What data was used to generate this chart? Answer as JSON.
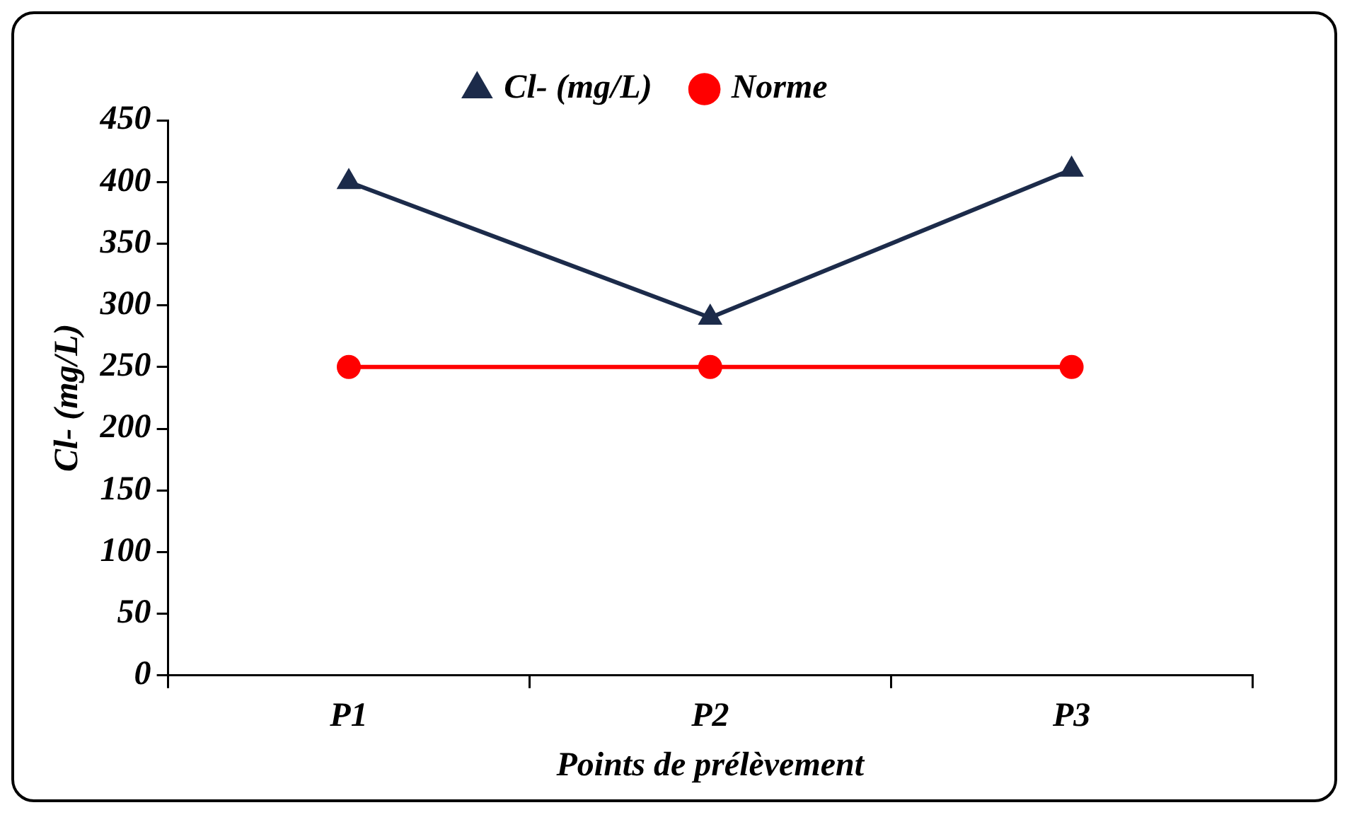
{
  "chart_data": {
    "type": "line",
    "xlabel": "Points de prélèvement",
    "ylabel": "Cl- (mg/L)",
    "categories": [
      "P1",
      "P2",
      "P3"
    ],
    "series": [
      {
        "name": "Cl- (mg/L)",
        "color": "#1c2b4a",
        "values": [
          400,
          290,
          410
        ],
        "marker": "triangle"
      },
      {
        "name": "Norme",
        "color": "#ff0000",
        "values": [
          250,
          250,
          250
        ],
        "marker": "circle"
      }
    ],
    "ylim": [
      0,
      450
    ],
    "yticks": [
      0,
      50,
      100,
      150,
      200,
      250,
      300,
      350,
      400,
      450
    ],
    "grid": false,
    "legend": "top",
    "line_style": "solid"
  }
}
